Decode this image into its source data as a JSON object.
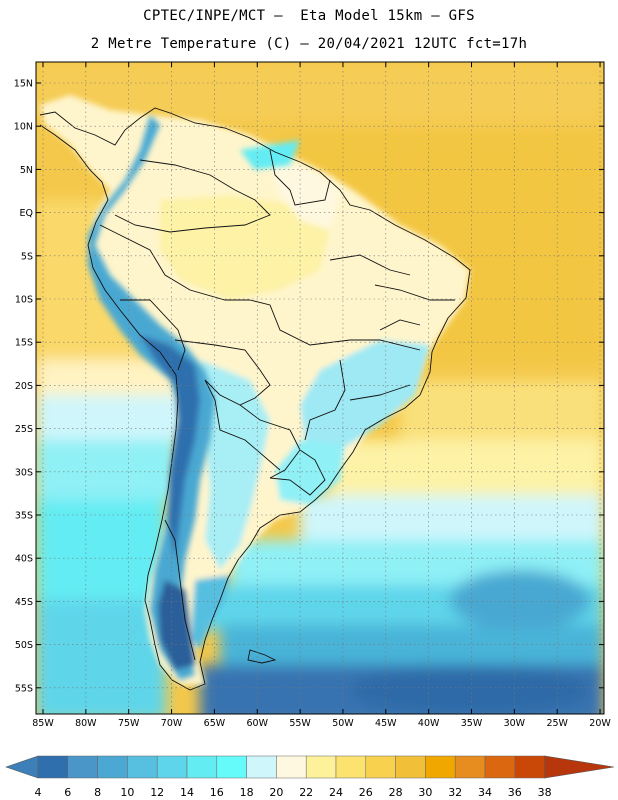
{
  "title_line1": "CPTEC/INPE/MCT –  Eta Model 15km – GFS",
  "title_line2": "2 Metre Temperature (C) – 20/04/2021 12UTC fct=17h",
  "lat_labels": [
    "15N",
    "10N",
    "5N",
    "EQ",
    "5S",
    "10S",
    "15S",
    "20S",
    "25S",
    "30S",
    "35S",
    "40S",
    "45S",
    "50S",
    "55S"
  ],
  "lon_labels": [
    "85W",
    "80W",
    "75W",
    "70W",
    "65W",
    "60W",
    "55W",
    "50W",
    "45W",
    "40W",
    "35W",
    "30W",
    "25W",
    "20W"
  ],
  "colorbar": {
    "labels": [
      "4",
      "6",
      "8",
      "10",
      "12",
      "14",
      "16",
      "18",
      "20",
      "22",
      "24",
      "26",
      "28",
      "30",
      "32",
      "34",
      "36",
      "38"
    ],
    "colors": [
      "#3c7fb9",
      "#2f6fae",
      "#4a96c8",
      "#4aa8d2",
      "#57bfe0",
      "#5ed5ea",
      "#64ecf3",
      "#66fbfb",
      "#cff6fb",
      "#fff8e0",
      "#fdf29a",
      "#fce36f",
      "#f8d24f",
      "#f2c038",
      "#f0a800",
      "#e78c1e",
      "#db6711",
      "#c94707",
      "#b8360b"
    ]
  },
  "chart_data": {
    "type": "heatmap",
    "variable": "2 Metre Temperature (C)",
    "units": "C",
    "lon_range": [
      -86,
      -19
    ],
    "lat_range": [
      -58,
      16
    ],
    "levels": [
      4,
      6,
      8,
      10,
      12,
      14,
      16,
      18,
      20,
      22,
      24,
      26,
      28,
      30,
      32,
      34,
      36,
      38
    ],
    "regions": [
      {
        "region": "northern Atlantic / Caribbean ocean",
        "value_range": [
          26,
          30
        ]
      },
      {
        "region": "Amazon basin",
        "value_range": [
          22,
          26
        ]
      },
      {
        "region": "Andes cordillera",
        "value_range": [
          4,
          14
        ]
      },
      {
        "region": "southeastern Brazil",
        "value_range": [
          14,
          20
        ]
      },
      {
        "region": "southern Atlantic 30S-40S",
        "value_range": [
          14,
          22
        ]
      },
      {
        "region": "Patagonia / southern ocean",
        "value_range": [
          4,
          12
        ]
      }
    ]
  }
}
